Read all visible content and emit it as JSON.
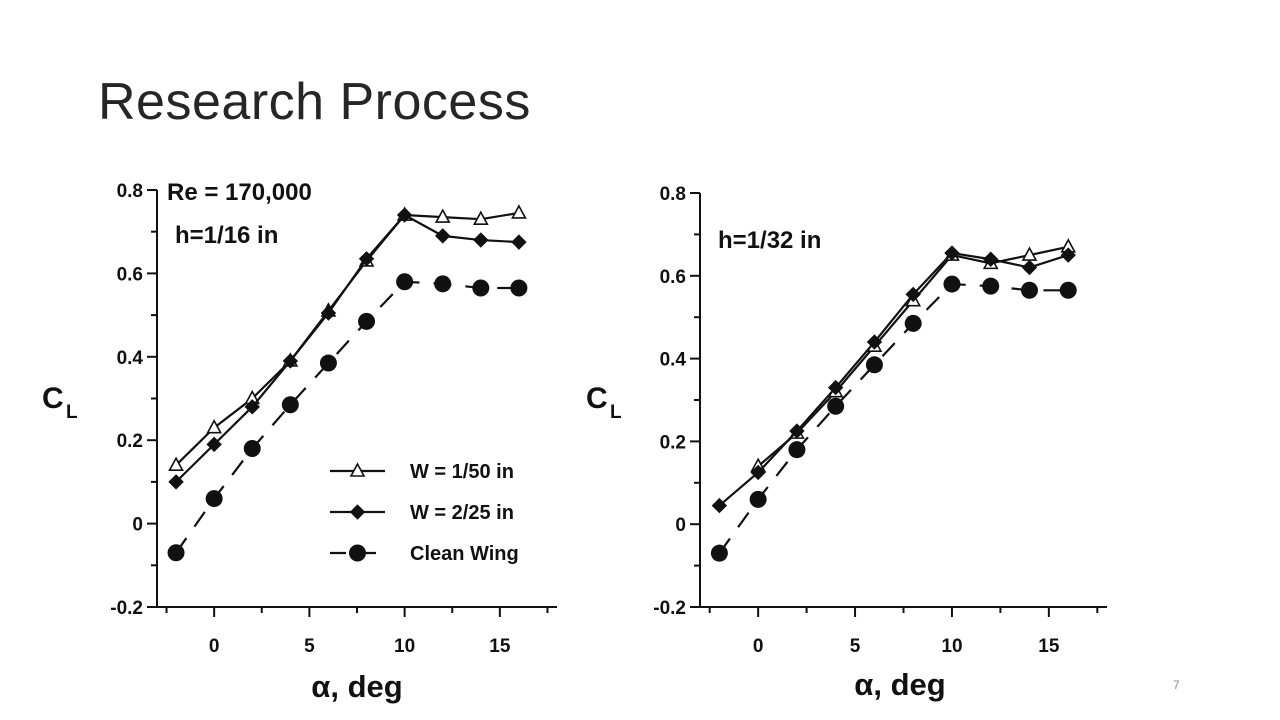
{
  "slide": {
    "title": "Research Process",
    "page_number": "7"
  },
  "legend": {
    "items": [
      {
        "label": "W = 1/50 in",
        "marker": "triangle-open",
        "line": "solid"
      },
      {
        "label": "W = 2/25 in",
        "marker": "diamond-filled",
        "line": "solid"
      },
      {
        "label": "Clean Wing",
        "marker": "circle-filled",
        "line": "dashed"
      }
    ]
  },
  "chart_data": [
    {
      "type": "line",
      "annotations": [
        "Re = 170,000",
        "h=1/16 in"
      ],
      "xlabel": "α, deg",
      "ylabel": "C",
      "ylabel_sub": "L",
      "xlim": [
        -3,
        18
      ],
      "ylim": [
        -0.2,
        0.8
      ],
      "xticks": [
        0,
        5,
        10,
        15
      ],
      "yticks": [
        -0.2,
        0,
        0.2,
        0.4,
        0.6,
        0.8
      ],
      "ytick_labels": [
        "-0.2",
        "0",
        "0.2",
        "0.4",
        "0.6",
        "0.8"
      ],
      "grid": false,
      "legend_position": "bottom-right",
      "series": [
        {
          "name": "W = 1/50 in",
          "x": [
            -2,
            0,
            2,
            4,
            6,
            8,
            10,
            12,
            14,
            16
          ],
          "y": [
            0.14,
            0.23,
            0.3,
            0.39,
            0.51,
            0.63,
            0.74,
            0.735,
            0.73,
            0.745
          ]
        },
        {
          "name": "W = 2/25 in",
          "x": [
            -2,
            0,
            2,
            4,
            6,
            8,
            10,
            12,
            14,
            16
          ],
          "y": [
            0.1,
            0.19,
            0.28,
            0.39,
            0.505,
            0.635,
            0.74,
            0.69,
            0.68,
            0.675
          ]
        },
        {
          "name": "Clean Wing",
          "x": [
            -2,
            0,
            2,
            4,
            6,
            8,
            10,
            12,
            14,
            16
          ],
          "y": [
            -0.07,
            0.06,
            0.18,
            0.285,
            0.385,
            0.485,
            0.58,
            0.575,
            0.565,
            0.565
          ]
        }
      ]
    },
    {
      "type": "line",
      "annotations": [
        "h=1/32 in"
      ],
      "xlabel": "α, deg",
      "ylabel": "C",
      "ylabel_sub": "L",
      "xlim": [
        -3,
        18
      ],
      "ylim": [
        -0.2,
        0.8
      ],
      "xticks": [
        0,
        5,
        10,
        15
      ],
      "yticks": [
        -0.2,
        0,
        0.2,
        0.4,
        0.6,
        0.8
      ],
      "ytick_labels": [
        "-0.2",
        "0",
        "0.2",
        "0.4",
        "0.6",
        "0.8"
      ],
      "grid": false,
      "series": [
        {
          "name": "W = 1/50 in",
          "x": [
            0,
            2,
            4,
            6,
            8,
            10,
            12,
            14,
            16
          ],
          "y": [
            0.14,
            0.22,
            0.32,
            0.43,
            0.54,
            0.65,
            0.63,
            0.65,
            0.67
          ]
        },
        {
          "name": "W = 2/25 in",
          "x": [
            -2,
            0,
            2,
            4,
            6,
            8,
            10,
            12,
            14,
            16
          ],
          "y": [
            0.045,
            0.125,
            0.225,
            0.33,
            0.44,
            0.555,
            0.655,
            0.64,
            0.62,
            0.65
          ]
        },
        {
          "name": "Clean Wing",
          "x": [
            -2,
            0,
            2,
            4,
            6,
            8,
            10,
            12,
            14,
            16
          ],
          "y": [
            -0.07,
            0.06,
            0.18,
            0.285,
            0.385,
            0.485,
            0.58,
            0.575,
            0.565,
            0.565
          ]
        }
      ]
    }
  ]
}
